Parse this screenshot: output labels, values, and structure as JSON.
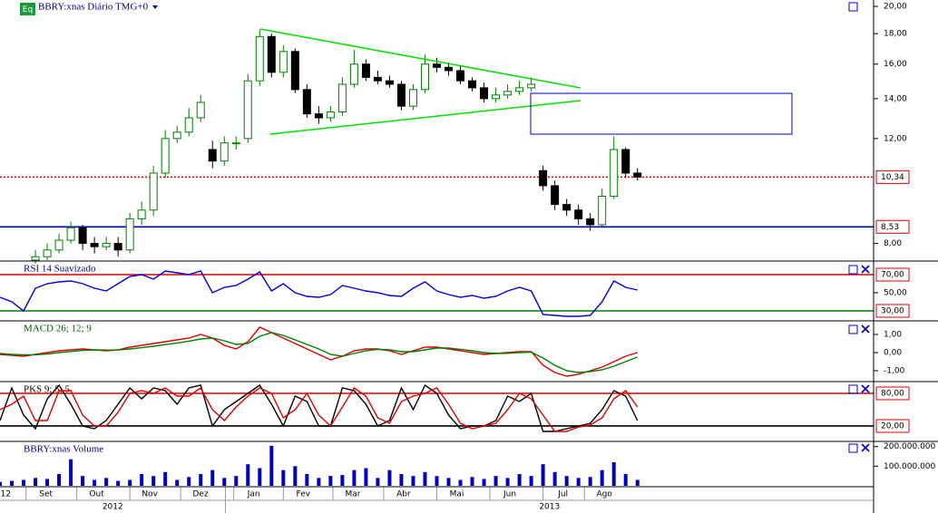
{
  "chart_data": [
    {
      "type": "candlestick",
      "title": "BBRY:xnas Diário TMG+0",
      "badge": "Eq",
      "log_scale": true,
      "xlim": [
        0,
        74
      ],
      "ylim": [
        7.5,
        20.5
      ],
      "yticks": [
        {
          "value": 20,
          "label": "20,00"
        },
        {
          "value": 18,
          "label": "18,00"
        },
        {
          "value": 16,
          "label": "16,00"
        },
        {
          "value": 14,
          "label": "14,00"
        },
        {
          "value": 12,
          "label": "12,00"
        },
        {
          "value": 8,
          "label": "8,00"
        }
      ],
      "levels": [
        {
          "value": 10.34,
          "label": "10,34",
          "color": "#e00000",
          "dashed": true
        },
        {
          "value": 8.53,
          "label": "8,53",
          "color": "#0000c0",
          "dashed": false
        }
      ],
      "up_color": "#008000",
      "down_color": "#000000",
      "x": [
        3,
        4,
        5,
        6,
        7,
        8,
        9,
        10,
        11,
        12,
        13,
        14,
        15,
        16,
        17,
        18,
        19,
        20,
        21,
        22,
        23,
        24,
        25,
        26,
        27,
        28,
        29,
        30,
        31,
        32,
        33,
        34,
        35,
        36,
        37,
        38,
        39,
        40,
        41,
        42,
        43,
        44,
        45,
        46,
        47,
        48,
        49,
        50,
        51,
        52,
        53,
        54
      ],
      "open": [
        7.5,
        7.6,
        7.8,
        8.1,
        8.5,
        8.0,
        7.9,
        8.0,
        7.8,
        8.8,
        9.1,
        10.5,
        12.0,
        12.3,
        13.0,
        11.5,
        11.0,
        11.8,
        12.0,
        15.0,
        17.8,
        15.5,
        16.8,
        14.5,
        13.2,
        13.0,
        13.3,
        14.8,
        16.0,
        15.2,
        15.0,
        14.8,
        13.6,
        14.5,
        16.0,
        15.8,
        15.6,
        15.0,
        14.6,
        14.0,
        14.2,
        14.4,
        14.6,
        10.6,
        10.0,
        9.3,
        9.1,
        8.8,
        8.6,
        9.6,
        11.5,
        10.5
      ],
      "high": [
        7.8,
        8.0,
        8.3,
        8.7,
        8.6,
        8.2,
        8.2,
        8.2,
        9.0,
        9.4,
        10.8,
        12.4,
        12.6,
        13.5,
        14.2,
        11.9,
        12.1,
        12.1,
        15.4,
        18.3,
        18.0,
        17.2,
        17.0,
        14.8,
        13.6,
        13.6,
        15.2,
        16.9,
        16.3,
        15.6,
        15.3,
        15.0,
        14.8,
        16.6,
        16.4,
        16.1,
        15.9,
        15.2,
        14.9,
        14.6,
        14.8,
        15.0,
        15.2,
        10.8,
        10.2,
        9.5,
        9.3,
        9.0,
        9.9,
        12.1,
        11.6,
        10.7
      ],
      "low": [
        7.4,
        7.5,
        7.7,
        8.0,
        7.8,
        7.7,
        7.8,
        7.6,
        7.7,
        8.6,
        8.9,
        10.3,
        11.8,
        12.1,
        12.8,
        10.7,
        10.8,
        11.5,
        11.8,
        14.7,
        15.2,
        15.2,
        14.3,
        13.0,
        12.7,
        12.8,
        13.1,
        14.6,
        15.0,
        14.8,
        14.6,
        13.4,
        13.4,
        14.3,
        15.5,
        15.3,
        14.8,
        14.4,
        13.8,
        13.8,
        14.0,
        14.2,
        14.4,
        9.8,
        9.1,
        8.9,
        8.6,
        8.4,
        8.5,
        9.5,
        10.3,
        10.2
      ],
      "close": [
        7.6,
        7.8,
        8.1,
        8.5,
        8.0,
        7.9,
        8.0,
        7.8,
        8.8,
        9.1,
        10.5,
        12.0,
        12.3,
        13.0,
        13.8,
        11.0,
        11.8,
        11.8,
        15.0,
        17.8,
        15.5,
        16.8,
        14.5,
        13.2,
        13.0,
        13.3,
        14.8,
        16.0,
        15.2,
        15.0,
        14.8,
        13.6,
        14.5,
        16.0,
        15.8,
        15.6,
        15.0,
        14.6,
        14.0,
        14.2,
        14.4,
        14.6,
        14.8,
        10.0,
        9.3,
        9.1,
        8.8,
        8.6,
        9.6,
        11.5,
        10.5,
        10.34
      ]
    },
    {
      "type": "line",
      "title": "RSI 14 Suavizado",
      "xlim": [
        0,
        74
      ],
      "ylim": [
        20,
        84
      ],
      "yticks": [
        {
          "value": 50,
          "label": "50,00"
        }
      ],
      "levels": [
        {
          "value": 70,
          "label": "70,00",
          "color": "#e00000",
          "dashed": false
        },
        {
          "value": 30,
          "label": "30,00",
          "color": "#008000",
          "dashed": false
        }
      ],
      "x": [
        0,
        1,
        2,
        3,
        4,
        5,
        6,
        7,
        8,
        9,
        10,
        11,
        12,
        13,
        14,
        15,
        16,
        17,
        18,
        19,
        20,
        21,
        22,
        23,
        24,
        25,
        26,
        27,
        28,
        29,
        30,
        31,
        32,
        33,
        34,
        35,
        36,
        37,
        38,
        39,
        40,
        41,
        42,
        43,
        44,
        45,
        46,
        47,
        48,
        49,
        50,
        51,
        52,
        53,
        54
      ],
      "series": [
        {
          "color": "#0000e0",
          "values": [
            45,
            40,
            30,
            55,
            60,
            62,
            63,
            60,
            55,
            52,
            60,
            68,
            70,
            65,
            74,
            72,
            70,
            74,
            50,
            56,
            58,
            65,
            73,
            52,
            60,
            50,
            46,
            45,
            48,
            58,
            55,
            52,
            50,
            47,
            46,
            55,
            62,
            52,
            48,
            45,
            47,
            44,
            46,
            52,
            56,
            52,
            26,
            25,
            24,
            24,
            25,
            40,
            63,
            56,
            53
          ]
        }
      ]
    },
    {
      "type": "line",
      "title": "MACD 26; 12; 9",
      "xlim": [
        0,
        74
      ],
      "ylim": [
        -1.55,
        1.7
      ],
      "yticks": [
        {
          "value": 1,
          "label": "1,00"
        },
        {
          "value": 0,
          "label": "0,00"
        },
        {
          "value": -1,
          "label": "-1,00"
        }
      ],
      "x": [
        0,
        1,
        2,
        3,
        4,
        5,
        6,
        7,
        8,
        9,
        10,
        11,
        12,
        13,
        14,
        15,
        16,
        17,
        18,
        19,
        20,
        21,
        22,
        23,
        24,
        25,
        26,
        27,
        28,
        29,
        30,
        31,
        32,
        33,
        34,
        35,
        36,
        37,
        38,
        39,
        40,
        41,
        42,
        43,
        44,
        45,
        46,
        47,
        48,
        49,
        50,
        51,
        52,
        53,
        54
      ],
      "series": [
        {
          "color": "#e00000",
          "values": [
            -0.1,
            -0.15,
            -0.2,
            -0.1,
            0,
            0.1,
            0.15,
            0.2,
            0.15,
            0.1,
            0.15,
            0.3,
            0.4,
            0.5,
            0.6,
            0.7,
            0.8,
            1.0,
            0.8,
            0.4,
            0.2,
            0.6,
            1.4,
            1.1,
            0.8,
            0.5,
            0.2,
            -0.1,
            -0.4,
            -0.2,
            0.1,
            0.2,
            0.2,
            0.1,
            -0.1,
            0.1,
            0.3,
            0.3,
            0.2,
            0.1,
            0,
            -0.1,
            -0.05,
            0,
            0.05,
            0.05,
            -0.7,
            -1.1,
            -1.3,
            -1.2,
            -1.0,
            -0.8,
            -0.5,
            -0.2,
            0.0
          ]
        },
        {
          "color": "#008000",
          "values": [
            -0.05,
            -0.1,
            -0.12,
            -0.12,
            -0.08,
            0,
            0.06,
            0.12,
            0.15,
            0.14,
            0.14,
            0.2,
            0.27,
            0.35,
            0.44,
            0.53,
            0.63,
            0.75,
            0.8,
            0.65,
            0.45,
            0.5,
            0.9,
            1.1,
            0.95,
            0.7,
            0.45,
            0.2,
            -0.1,
            -0.2,
            -0.05,
            0.1,
            0.18,
            0.15,
            0.05,
            0.05,
            0.15,
            0.25,
            0.25,
            0.18,
            0.1,
            0,
            -0.05,
            -0.04,
            0,
            0.02,
            -0.3,
            -0.7,
            -1.0,
            -1.1,
            -1.05,
            -0.95,
            -0.75,
            -0.5,
            -0.25
          ]
        }
      ]
    },
    {
      "type": "line",
      "title": "PKS 9; 5; 5",
      "xlim": [
        0,
        74
      ],
      "ylim": [
        -6.7,
        100
      ],
      "yticks": [],
      "levels": [
        {
          "value": 80,
          "label": "80,00",
          "color": "#e00000",
          "dashed": false
        },
        {
          "value": 20,
          "label": "20,00",
          "color": "#000000",
          "dashed": false
        }
      ],
      "x": [
        0,
        1,
        2,
        3,
        4,
        5,
        6,
        7,
        8,
        9,
        10,
        11,
        12,
        13,
        14,
        15,
        16,
        17,
        18,
        19,
        20,
        21,
        22,
        23,
        24,
        25,
        26,
        27,
        28,
        29,
        30,
        31,
        32,
        33,
        34,
        35,
        36,
        37,
        38,
        39,
        40,
        41,
        42,
        43,
        44,
        45,
        46,
        47,
        48,
        49,
        50,
        51,
        52,
        53,
        54
      ],
      "series": [
        {
          "color": "#000000",
          "values": [
            30,
            90,
            40,
            15,
            70,
            95,
            60,
            20,
            15,
            30,
            60,
            90,
            70,
            90,
            85,
            60,
            90,
            95,
            20,
            50,
            65,
            80,
            95,
            60,
            20,
            75,
            65,
            20,
            20,
            90,
            85,
            60,
            20,
            30,
            90,
            50,
            95,
            80,
            40,
            15,
            20,
            20,
            30,
            75,
            65,
            80,
            10,
            10,
            15,
            20,
            25,
            50,
            85,
            75,
            30
          ]
        },
        {
          "color": "#e00000",
          "values": [
            50,
            60,
            75,
            30,
            30,
            85,
            85,
            40,
            20,
            20,
            45,
            80,
            85,
            80,
            90,
            75,
            75,
            90,
            50,
            30,
            55,
            75,
            90,
            80,
            35,
            50,
            80,
            40,
            20,
            55,
            90,
            75,
            35,
            25,
            65,
            75,
            80,
            90,
            60,
            25,
            15,
            20,
            25,
            50,
            80,
            70,
            40,
            10,
            10,
            18,
            22,
            35,
            70,
            85,
            55
          ]
        }
      ]
    },
    {
      "type": "bar",
      "title": "BBRY:xnas Volume",
      "xlim": [
        0,
        74
      ],
      "ylim": [
        0,
        221700000
      ],
      "color": "#0000c0",
      "yticks": [
        {
          "value": 200000000,
          "label": "200.000.000"
        },
        {
          "value": 100000000,
          "label": "100.000.000"
        }
      ],
      "xticks": [
        {
          "value": -1.2,
          "label": "12"
        },
        {
          "value": 2.2,
          "label": "Set"
        },
        {
          "value": 6.5,
          "label": "Out"
        },
        {
          "value": 11,
          "label": "Nov"
        },
        {
          "value": 15.3,
          "label": "Dez"
        },
        {
          "value": 19.8,
          "label": "Jan"
        },
        {
          "value": 24,
          "label": "Fev"
        },
        {
          "value": 28.2,
          "label": "Mar"
        },
        {
          "value": 32.5,
          "label": "Abr"
        },
        {
          "value": 37,
          "label": "Mai"
        },
        {
          "value": 41.5,
          "label": "Jun"
        },
        {
          "value": 46,
          "label": "Jul"
        },
        {
          "value": 49.5,
          "label": "Ago"
        }
      ],
      "years": [
        {
          "value": -33,
          "label": "2012"
        },
        {
          "value": 19.1,
          "label": "2013"
        }
      ],
      "x": [
        0,
        1,
        2,
        3,
        4,
        5,
        6,
        7,
        8,
        9,
        10,
        11,
        12,
        13,
        14,
        15,
        16,
        17,
        18,
        19,
        20,
        21,
        22,
        23,
        24,
        25,
        26,
        27,
        28,
        29,
        30,
        31,
        32,
        33,
        34,
        35,
        36,
        37,
        38,
        39,
        40,
        41,
        42,
        43,
        44,
        45,
        46,
        47,
        48,
        49,
        50,
        51,
        52,
        53,
        54
      ],
      "values": [
        20000000,
        25000000,
        30000000,
        40000000,
        35000000,
        60000000,
        135000000,
        50000000,
        30000000,
        40000000,
        25000000,
        30000000,
        60000000,
        50000000,
        70000000,
        30000000,
        45000000,
        60000000,
        80000000,
        40000000,
        50000000,
        110000000,
        90000000,
        204000000,
        80000000,
        100000000,
        60000000,
        40000000,
        50000000,
        55000000,
        80000000,
        90000000,
        40000000,
        80000000,
        60000000,
        50000000,
        70000000,
        50000000,
        40000000,
        30000000,
        45000000,
        35000000,
        50000000,
        40000000,
        60000000,
        50000000,
        110000000,
        70000000,
        50000000,
        40000000,
        45000000,
        80000000,
        120000000,
        60000000,
        30000000
      ]
    }
  ]
}
